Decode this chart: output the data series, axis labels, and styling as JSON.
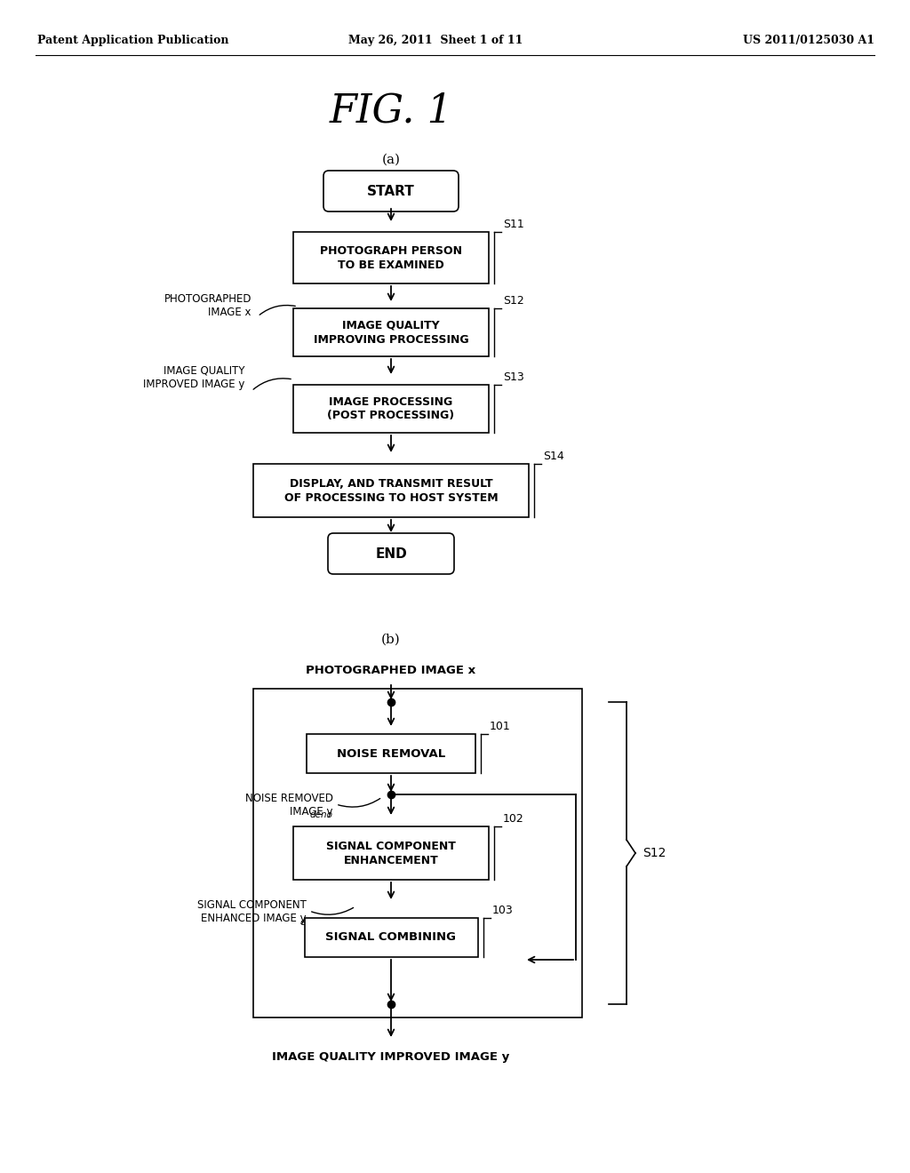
{
  "bg_color": "#ffffff",
  "fig_w": 10.24,
  "fig_h": 13.2,
  "dpi": 100,
  "header_left": "Patent Application Publication",
  "header_mid": "May 26, 2011  Sheet 1 of 11",
  "header_right": "US 2011/0125030 A1",
  "fig_title": "FIG. 1",
  "section_a_label": "(a)",
  "section_b_label": "(b)"
}
